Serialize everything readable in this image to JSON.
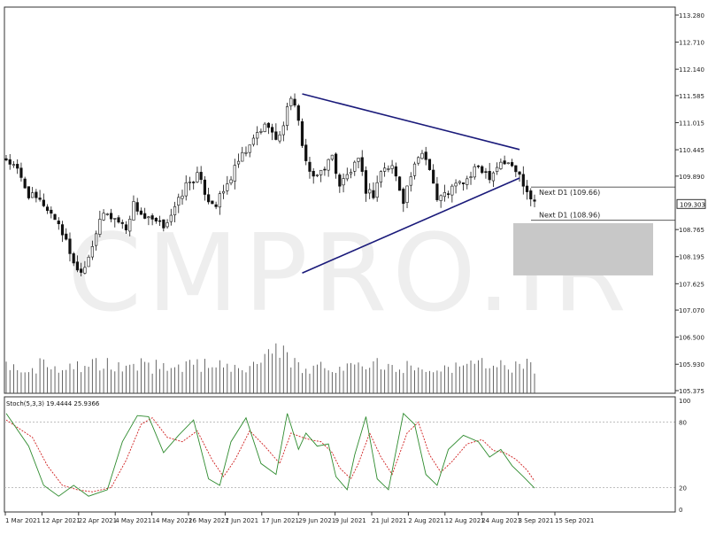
{
  "watermark": "CMPRO.IR",
  "price_axis": {
    "ticks": [
      "113.280",
      "112.710",
      "112.140",
      "111.585",
      "111.015",
      "110.445",
      "109.890",
      "109.303",
      "108.765",
      "108.195",
      "107.625",
      "107.070",
      "106.500",
      "105.930",
      "105.375"
    ],
    "current": "109.303",
    "ylim": [
      105.375,
      113.28
    ]
  },
  "levels": [
    {
      "label": "Next D1 (109.66)",
      "value": 109.66
    },
    {
      "label": "Next D1 (108.96)",
      "value": 108.96
    }
  ],
  "zone": {
    "from": 107.8,
    "to": 108.9,
    "color": "#c8c8c8"
  },
  "trendlines": {
    "color": "#1a1a7a",
    "upper": {
      "from": {
        "date": "29 Jun 2021",
        "price": 111.62
      },
      "to": {
        "date": "15 Sep 2021",
        "price": 110.45
      }
    },
    "lower": {
      "from": {
        "date": "29 Jun 2021",
        "price": 107.85
      },
      "to": {
        "date": "15 Sep 2021",
        "price": 109.85
      }
    }
  },
  "stoch": {
    "label": "Stoch(5,3,3) 19.4444 25.9366",
    "levels": [
      "100",
      "80",
      "20",
      "0"
    ],
    "main_color": "#2e8b2e",
    "signal_color": "#d02020"
  },
  "date_axis": [
    "1 Mar 2021",
    "12 Apr 2021",
    "22 Apr 2021",
    "4 May 2021",
    "14 May 2021",
    "26 May 2021",
    "7 Jun 2021",
    "17 Jun 2021",
    "29 Jun 2021",
    "9 Jul 2021",
    "21 Jul 2021",
    "2 Aug 2021",
    "12 Aug 2021",
    "24 Aug 2021",
    "3 Sep 2021",
    "15 Sep 2021"
  ],
  "chart_data": {
    "type": "candlestick",
    "symbol_timeframe": "D1",
    "close_curve": [
      [
        0,
        110.25
      ],
      [
        3,
        110.0
      ],
      [
        6,
        109.5
      ],
      [
        10,
        109.3
      ],
      [
        14,
        108.9
      ],
      [
        17,
        108.3
      ],
      [
        19,
        107.9
      ],
      [
        21,
        108.0
      ],
      [
        24,
        108.7
      ],
      [
        26,
        109.1
      ],
      [
        29,
        109.0
      ],
      [
        32,
        108.8
      ],
      [
        34,
        109.3
      ],
      [
        37,
        109.0
      ],
      [
        40,
        108.9
      ],
      [
        42,
        108.85
      ],
      [
        45,
        109.2
      ],
      [
        48,
        109.7
      ],
      [
        51,
        109.9
      ],
      [
        54,
        109.4
      ],
      [
        56,
        109.3
      ],
      [
        59,
        109.7
      ],
      [
        62,
        110.2
      ],
      [
        65,
        110.5
      ],
      [
        67,
        110.8
      ],
      [
        70,
        111.0
      ],
      [
        72,
        110.6
      ],
      [
        74,
        111.0
      ],
      [
        76,
        111.6
      ],
      [
        78,
        111.0
      ],
      [
        80,
        110.2
      ],
      [
        82,
        109.8
      ],
      [
        84,
        110.0
      ],
      [
        87,
        110.3
      ],
      [
        89,
        109.7
      ],
      [
        92,
        110.0
      ],
      [
        94,
        110.2
      ],
      [
        96,
        109.6
      ],
      [
        98,
        109.5
      ],
      [
        100,
        110.0
      ],
      [
        103,
        110.1
      ],
      [
        106,
        109.4
      ],
      [
        108,
        109.9
      ],
      [
        111,
        110.4
      ],
      [
        113,
        110.1
      ],
      [
        115,
        109.4
      ],
      [
        117,
        109.5
      ],
      [
        120,
        109.7
      ],
      [
        123,
        109.8
      ],
      [
        126,
        110.1
      ],
      [
        129,
        109.9
      ],
      [
        132,
        110.2
      ],
      [
        135,
        110.1
      ],
      [
        137,
        109.9
      ],
      [
        139,
        109.6
      ],
      [
        141,
        109.35
      ]
    ],
    "candle_count": 142,
    "volume": "bars",
    "stoch_k": [
      [
        0,
        88
      ],
      [
        6,
        58
      ],
      [
        10,
        22
      ],
      [
        14,
        12
      ],
      [
        18,
        22
      ],
      [
        22,
        12
      ],
      [
        27,
        18
      ],
      [
        31,
        62
      ],
      [
        35,
        86
      ],
      [
        38,
        85
      ],
      [
        42,
        52
      ],
      [
        46,
        68
      ],
      [
        50,
        82
      ],
      [
        54,
        28
      ],
      [
        57,
        22
      ],
      [
        60,
        62
      ],
      [
        64,
        84
      ],
      [
        68,
        42
      ],
      [
        72,
        32
      ],
      [
        75,
        88
      ],
      [
        78,
        55
      ],
      [
        80,
        70
      ],
      [
        83,
        58
      ],
      [
        86,
        60
      ],
      [
        88,
        30
      ],
      [
        91,
        18
      ],
      [
        93,
        50
      ],
      [
        96,
        85
      ],
      [
        99,
        28
      ],
      [
        102,
        18
      ],
      [
        106,
        88
      ],
      [
        109,
        78
      ],
      [
        112,
        32
      ],
      [
        115,
        22
      ],
      [
        118,
        55
      ],
      [
        122,
        68
      ],
      [
        126,
        62
      ],
      [
        129,
        48
      ],
      [
        132,
        55
      ],
      [
        135,
        40
      ],
      [
        138,
        30
      ],
      [
        141,
        19.4
      ]
    ],
    "stoch_d": [
      [
        0,
        82
      ],
      [
        7,
        66
      ],
      [
        11,
        40
      ],
      [
        15,
        22
      ],
      [
        19,
        18
      ],
      [
        23,
        16
      ],
      [
        28,
        20
      ],
      [
        32,
        45
      ],
      [
        36,
        78
      ],
      [
        39,
        84
      ],
      [
        43,
        66
      ],
      [
        47,
        62
      ],
      [
        51,
        72
      ],
      [
        55,
        45
      ],
      [
        58,
        30
      ],
      [
        61,
        45
      ],
      [
        65,
        72
      ],
      [
        69,
        58
      ],
      [
        73,
        42
      ],
      [
        76,
        70
      ],
      [
        79,
        66
      ],
      [
        81,
        64
      ],
      [
        84,
        62
      ],
      [
        87,
        52
      ],
      [
        89,
        38
      ],
      [
        92,
        28
      ],
      [
        94,
        42
      ],
      [
        97,
        70
      ],
      [
        100,
        48
      ],
      [
        103,
        32
      ],
      [
        107,
        70
      ],
      [
        110,
        80
      ],
      [
        113,
        50
      ],
      [
        116,
        34
      ],
      [
        119,
        44
      ],
      [
        123,
        60
      ],
      [
        127,
        64
      ],
      [
        130,
        54
      ],
      [
        133,
        52
      ],
      [
        136,
        46
      ],
      [
        139,
        36
      ],
      [
        141,
        25.9
      ]
    ]
  }
}
